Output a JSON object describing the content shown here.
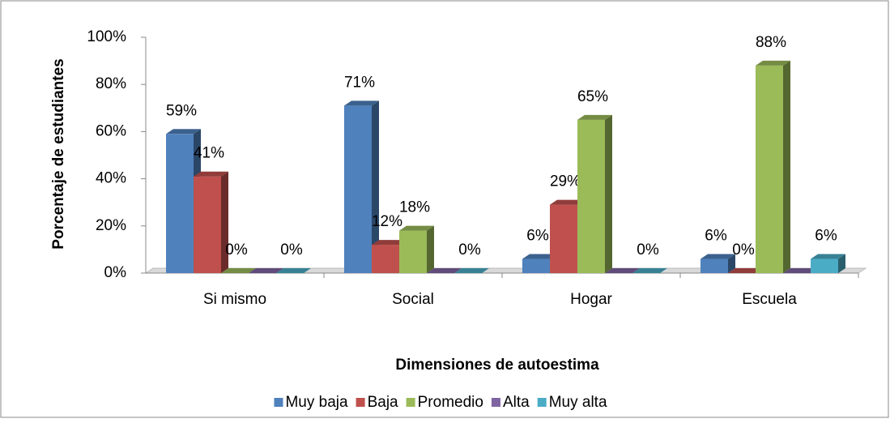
{
  "chart_data": {
    "type": "bar3d",
    "x_label": "Dimensiones de autoestima",
    "y_label": "Porcentaje de estudiantes",
    "categories": [
      "Si  mismo",
      "Social",
      "Hogar",
      "Escuela"
    ],
    "series": [
      {
        "name": "Muy baja",
        "color": "#4f81bd",
        "values": [
          59,
          71,
          6,
          6
        ],
        "value_labels": [
          "59%",
          "71%",
          "6%",
          "6%"
        ]
      },
      {
        "name": "Baja",
        "color": "#c0504d",
        "values": [
          41,
          12,
          29,
          0
        ],
        "value_labels": [
          "41%",
          "12%",
          "29%",
          "0%"
        ]
      },
      {
        "name": "Promedio",
        "color": "#9bbb59",
        "values": [
          0,
          18,
          65,
          88
        ],
        "value_labels": [
          "0%",
          "18%",
          "65%",
          "88%"
        ]
      },
      {
        "name": "Alta",
        "color": "#8064a2",
        "values": [
          0,
          0,
          0,
          0
        ]
      },
      {
        "name": "Muy alta",
        "color": "#4bacc6",
        "values": [
          0,
          0,
          0,
          6
        ],
        "value_labels": [
          "0%",
          "0%",
          "0%",
          "6%"
        ]
      }
    ],
    "ylim": [
      0,
      100
    ],
    "yticks": [
      {
        "value": 0,
        "label": "0%"
      },
      {
        "value": 20,
        "label": "20%"
      },
      {
        "value": 40,
        "label": "40%"
      },
      {
        "value": 60,
        "label": "60%"
      },
      {
        "value": 80,
        "label": "80%"
      },
      {
        "value": 100,
        "label": "100%"
      }
    ],
    "legend": "bottom"
  }
}
